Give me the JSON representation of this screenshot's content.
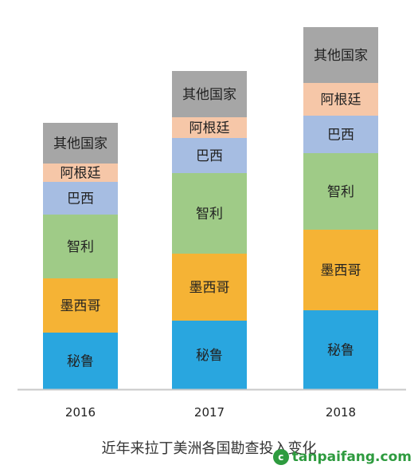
{
  "chart_data": {
    "type": "bar",
    "stacked": true,
    "categories": [
      "2016",
      "2017",
      "2018"
    ],
    "series": [
      {
        "name": "秘鲁",
        "color": "#29a6df",
        "values": [
          71,
          86,
          99
        ]
      },
      {
        "name": "墨西哥",
        "color": "#f5b335",
        "values": [
          68,
          84,
          101
        ]
      },
      {
        "name": "智利",
        "color": "#9fcb87",
        "values": [
          80,
          101,
          96
        ]
      },
      {
        "name": "巴西",
        "color": "#a6bde2",
        "values": [
          41,
          44,
          47
        ]
      },
      {
        "name": "阿根廷",
        "color": "#f6c7a8",
        "values": [
          23,
          26,
          41
        ]
      },
      {
        "name": "其他国家",
        "color": "#a6a6a6",
        "values": [
          51,
          58,
          70
        ]
      }
    ],
    "title": "",
    "xlabel": "",
    "ylabel": "",
    "ylim": [
      0,
      460
    ],
    "grid": false,
    "legend": "none"
  },
  "caption": "近年来拉丁美洲各国勘查投入变化",
  "watermark": {
    "text": "tanpaifang.com",
    "icon": "leaf-logo-icon"
  }
}
